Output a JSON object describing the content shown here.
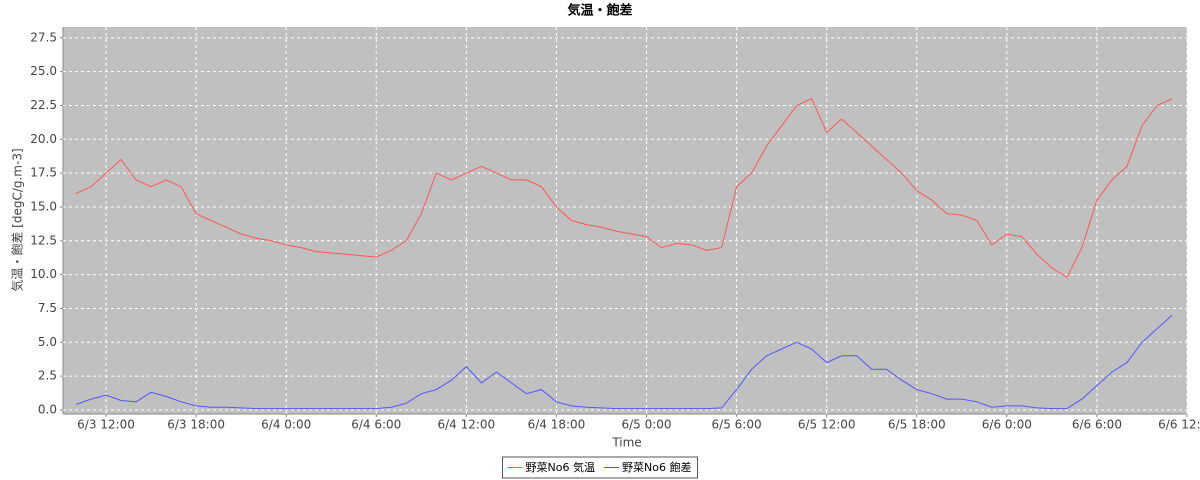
{
  "chart_data": {
    "type": "line",
    "title": "気温・飽差",
    "x_label": "Time",
    "y_label": "気温・飽差 [degC/g.m-3]",
    "x": [
      "6/3 10:00",
      "6/3 11:00",
      "6/3 12:00",
      "6/3 13:00",
      "6/3 14:00",
      "6/3 15:00",
      "6/3 16:00",
      "6/3 17:00",
      "6/3 18:00",
      "6/3 19:00",
      "6/3 20:00",
      "6/3 21:00",
      "6/3 22:00",
      "6/3 23:00",
      "6/4 0:00",
      "6/4 1:00",
      "6/4 2:00",
      "6/4 3:00",
      "6/4 4:00",
      "6/4 5:00",
      "6/4 6:00",
      "6/4 7:00",
      "6/4 8:00",
      "6/4 9:00",
      "6/4 10:00",
      "6/4 11:00",
      "6/4 12:00",
      "6/4 13:00",
      "6/4 14:00",
      "6/4 15:00",
      "6/4 16:00",
      "6/4 17:00",
      "6/4 18:00",
      "6/4 19:00",
      "6/4 20:00",
      "6/4 21:00",
      "6/4 22:00",
      "6/4 23:00",
      "6/5 0:00",
      "6/5 1:00",
      "6/5 2:00",
      "6/5 3:00",
      "6/5 4:00",
      "6/5 5:00",
      "6/5 6:00",
      "6/5 7:00",
      "6/5 8:00",
      "6/5 9:00",
      "6/5 10:00",
      "6/5 11:00",
      "6/5 12:00",
      "6/5 13:00",
      "6/5 14:00",
      "6/5 15:00",
      "6/5 16:00",
      "6/5 17:00",
      "6/5 18:00",
      "6/5 19:00",
      "6/5 20:00",
      "6/5 21:00",
      "6/5 22:00",
      "6/5 23:00",
      "6/6 0:00",
      "6/6 1:00",
      "6/6 2:00",
      "6/6 3:00",
      "6/6 4:00",
      "6/6 5:00",
      "6/6 6:00",
      "6/6 7:00",
      "6/6 8:00",
      "6/6 9:00",
      "6/6 10:00",
      "6/6 11:00"
    ],
    "series": [
      {
        "name": "野菜No6 気温",
        "color": "#ff5555",
        "values": [
          16.0,
          16.5,
          17.5,
          18.5,
          17.0,
          16.5,
          17.0,
          16.5,
          14.5,
          14.0,
          13.5,
          13.0,
          12.7,
          12.5,
          12.2,
          12.0,
          11.7,
          11.6,
          11.5,
          11.4,
          11.3,
          11.8,
          12.5,
          14.5,
          17.5,
          17.0,
          17.5,
          18.0,
          17.5,
          17.0,
          17.0,
          16.5,
          15.0,
          14.0,
          13.7,
          13.5,
          13.2,
          13.0,
          12.8,
          12.0,
          12.3,
          12.2,
          11.8,
          12.0,
          16.5,
          17.5,
          19.5,
          21.0,
          22.5,
          23.0,
          20.5,
          21.5,
          20.5,
          19.5,
          18.5,
          17.5,
          16.2,
          15.5,
          14.5,
          14.4,
          14.0,
          12.2,
          13.0,
          12.8,
          11.5,
          10.5,
          9.8,
          12.0,
          15.5,
          17.0,
          18.0,
          21.0,
          22.5,
          23.0
        ]
      },
      {
        "name": "野菜No6 飽差",
        "color": "#5555ff",
        "values": [
          0.4,
          0.8,
          1.1,
          0.7,
          0.6,
          1.3,
          1.0,
          0.6,
          0.3,
          0.2,
          0.2,
          0.15,
          0.1,
          0.1,
          0.1,
          0.1,
          0.1,
          0.1,
          0.1,
          0.1,
          0.1,
          0.2,
          0.5,
          1.2,
          1.5,
          2.2,
          3.2,
          2.0,
          2.8,
          2.0,
          1.2,
          1.5,
          0.6,
          0.3,
          0.2,
          0.15,
          0.1,
          0.1,
          0.1,
          0.1,
          0.1,
          0.1,
          0.1,
          0.15,
          1.5,
          3.0,
          4.0,
          4.5,
          5.0,
          4.5,
          3.5,
          4.0,
          4.0,
          3.0,
          3.0,
          2.2,
          1.5,
          1.2,
          0.8,
          0.8,
          0.6,
          0.2,
          0.3,
          0.3,
          0.15,
          0.1,
          0.1,
          0.8,
          1.8,
          2.8,
          3.5,
          5.0,
          6.0,
          7.0
        ]
      }
    ],
    "xlim": [
      "6/3 9:08",
      "6/6 12:00"
    ],
    "xticks": [
      "6/3 12:00",
      "6/3 18:00",
      "6/4 0:00",
      "6/4 6:00",
      "6/4 12:00",
      "6/4 18:00",
      "6/5 0:00",
      "6/5 6:00",
      "6/5 12:00",
      "6/5 18:00",
      "6/6 0:00",
      "6/6 6:00",
      "6/6 12:00"
    ],
    "ylim": [
      -0.3,
      28.3
    ],
    "yticks": [
      {
        "value": 0,
        "label": "0.0"
      },
      2.5,
      {
        "value": 5,
        "label": "5.0"
      },
      7.5,
      {
        "value": 10,
        "label": "10.0"
      },
      12.5,
      {
        "value": 15,
        "label": "15.0"
      },
      17.5,
      {
        "value": 20,
        "label": "20.0"
      },
      22.5,
      {
        "value": 25,
        "label": "25.0"
      },
      27.5
    ],
    "grid": true,
    "legend": "bottom"
  }
}
